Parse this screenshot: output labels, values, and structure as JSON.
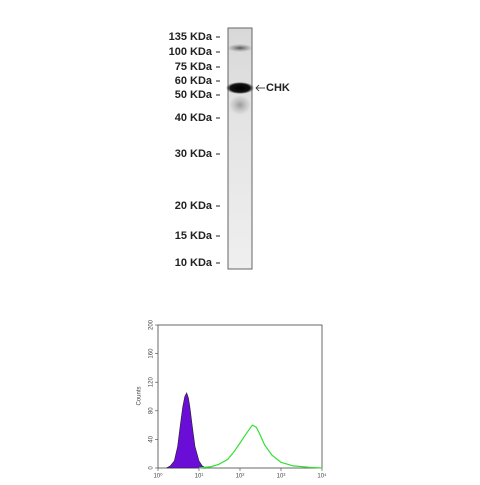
{
  "blot": {
    "markers": [
      "135 KDa",
      "100 KDa",
      "75 KDa",
      "60 KDa",
      "50 KDa",
      "40 KDa",
      "30 KDa",
      "20 KDa",
      "15 KDa",
      "10 KDa"
    ],
    "target_label": "CHK"
  },
  "chart_data": {
    "type": "area",
    "y_label": "Counts",
    "x_log": true,
    "xlim": [
      1,
      10000
    ],
    "xticks": [
      {
        "value": 1,
        "label": "10⁰"
      },
      {
        "value": 10,
        "label": "10¹"
      },
      {
        "value": 100,
        "label": "10²"
      },
      {
        "value": 1000,
        "label": "10³"
      },
      {
        "value": 10000,
        "label": "10⁴"
      }
    ],
    "ylim": [
      0,
      200
    ],
    "yticks": [
      0,
      40,
      80,
      120,
      160,
      200
    ],
    "series": [
      {
        "color": "#6a0dd6",
        "filled": true,
        "x": [
          1.6,
          2,
          2.5,
          3,
          3.5,
          4,
          4.5,
          5,
          5.5,
          6,
          7,
          8,
          10,
          12,
          15
        ],
        "values": [
          0,
          3,
          10,
          30,
          60,
          85,
          100,
          105,
          98,
          85,
          55,
          30,
          10,
          3,
          0
        ]
      },
      {
        "color": "#33e033",
        "filled": false,
        "x": [
          10,
          20,
          30,
          50,
          70,
          100,
          150,
          200,
          250,
          300,
          400,
          600,
          1000,
          2000,
          5000,
          10000
        ],
        "values": [
          0,
          2,
          5,
          12,
          22,
          35,
          50,
          60,
          57,
          48,
          32,
          18,
          8,
          3,
          1,
          0
        ]
      }
    ]
  }
}
